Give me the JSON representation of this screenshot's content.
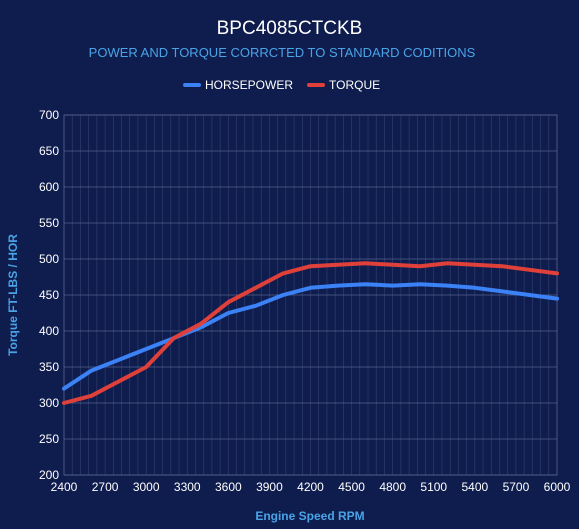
{
  "chart_data": {
    "type": "line",
    "title": "BPC4085CTCKB",
    "subtitle": "POWER AND TORQUE CORRCTED TO STANDARD CODITIONS",
    "xlabel": "Engine Speed RPM",
    "ylabel": "Torque FT-LBS / HOR",
    "xlim": [
      2400,
      6000
    ],
    "ylim": [
      200,
      700
    ],
    "xticks": [
      2400,
      2700,
      3000,
      3300,
      3600,
      3900,
      4200,
      4500,
      4800,
      5100,
      5400,
      5700,
      6000
    ],
    "yticks": [
      200,
      250,
      300,
      350,
      400,
      450,
      500,
      550,
      600,
      650,
      700
    ],
    "grid": true,
    "legend_position": "top-center",
    "x": [
      2400,
      2600,
      2800,
      3000,
      3200,
      3400,
      3600,
      3800,
      4000,
      4200,
      4400,
      4600,
      4800,
      5000,
      5200,
      5400,
      5600,
      5800,
      6000
    ],
    "series": [
      {
        "name": "HORSEPOWER",
        "color": "#3b82f6",
        "values": [
          320,
          345,
          360,
          375,
          390,
          405,
          425,
          435,
          450,
          460,
          463,
          465,
          463,
          465,
          463,
          460,
          455,
          450,
          445
        ]
      },
      {
        "name": "TORQUE",
        "color": "#e0403a",
        "values": [
          300,
          310,
          330,
          350,
          390,
          410,
          440,
          460,
          480,
          490,
          492,
          494,
          492,
          490,
          494,
          492,
          490,
          485,
          480
        ]
      }
    ]
  }
}
